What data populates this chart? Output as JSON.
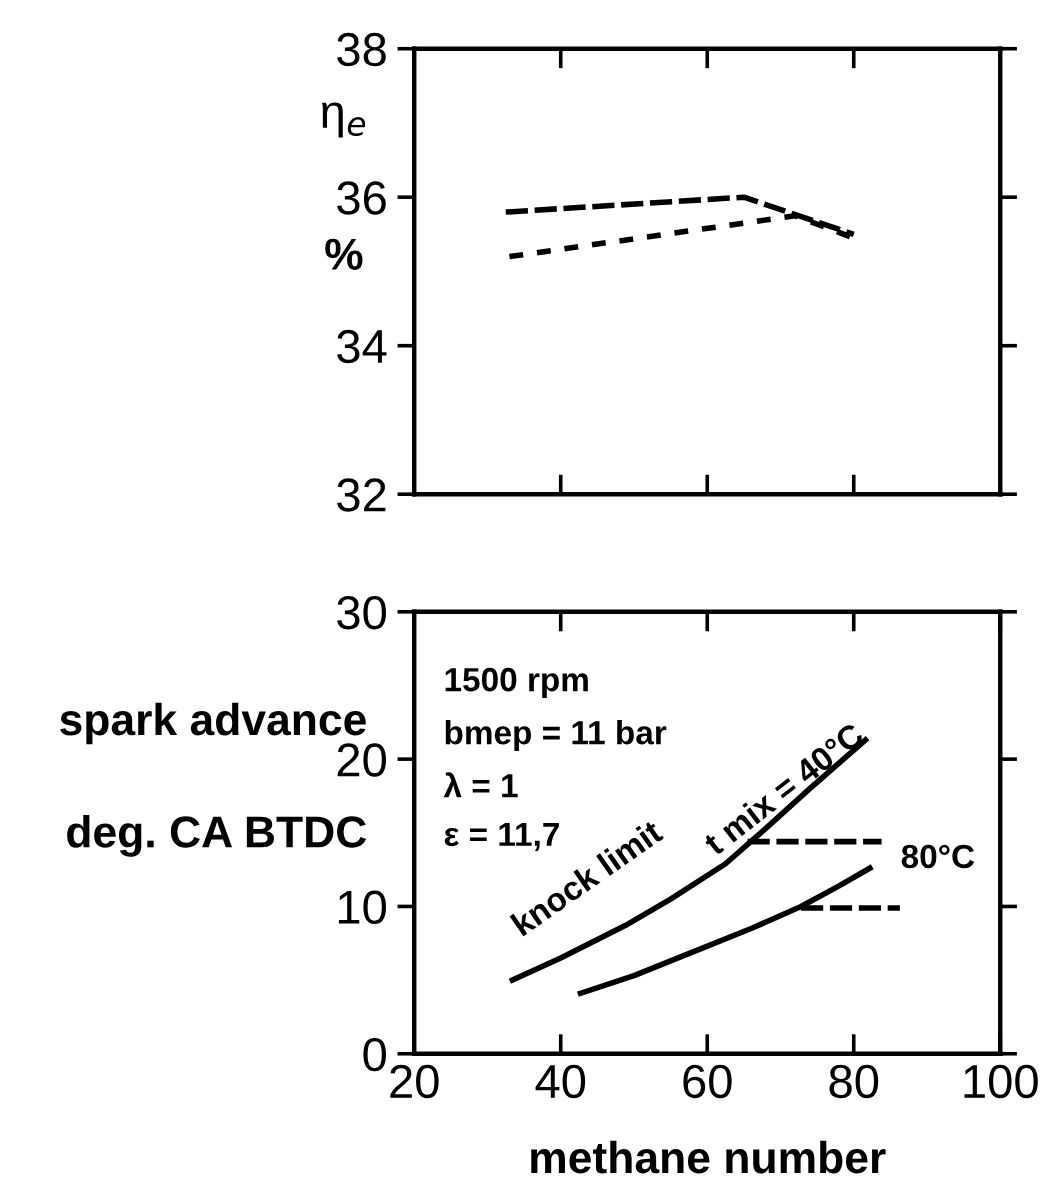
{
  "chart_data": [
    {
      "type": "line",
      "ylabel": "η$_{e}$",
      "annotations": [
        "%"
      ],
      "xlim": [
        20,
        100
      ],
      "xticks": [
        {
          "value": 40,
          "label": null
        },
        {
          "value": 60,
          "label": null
        },
        {
          "value": 80,
          "label": null
        }
      ],
      "ylim": [
        32,
        38
      ],
      "yticks": [
        32,
        34,
        36,
        38
      ],
      "tick_labels": "y",
      "grid": false,
      "series": [
        {
          "color": "#000000",
          "line_style": "dashed",
          "x": [
            32.5,
            65,
            80
          ],
          "values": [
            35.8,
            36.0,
            35.5
          ]
        },
        {
          "color": "#000000",
          "line_style": "dotted",
          "x": [
            33,
            72,
            80
          ],
          "values": [
            35.2,
            35.75,
            35.45
          ]
        }
      ]
    },
    {
      "type": "line",
      "xlabel": "methane number",
      "ylabel": "spark advance\ndeg. CA BTDC",
      "annotations": [
        "1500 rpm",
        "bmep = 11 bar",
        "λ = 1",
        "ε = 11,7",
        "knock limit",
        {
          "text": "t mix = 40°C",
          "x": 72,
          "y": 17
        },
        "80°C"
      ],
      "xlim": [
        20,
        100
      ],
      "xticks": [
        20,
        40,
        60,
        80,
        100
      ],
      "ylim": [
        0,
        30
      ],
      "yticks": [
        0,
        10,
        20,
        30
      ],
      "grid": false,
      "series": [
        {
          "color": "#000000",
          "line_style": "solid",
          "x": [
            33.4,
            40,
            48.8,
            55,
            62.5,
            68,
            74,
            81.6
          ],
          "values": [
            5.0,
            6.5,
            8.7,
            10.5,
            12.9,
            15.3,
            18.0,
            21.3
          ]
        },
        {
          "color": "#000000",
          "line_style": "solid",
          "x": [
            42.7,
            50,
            59,
            66,
            72.8,
            78,
            82.2
          ],
          "values": [
            4.1,
            5.3,
            7.1,
            8.5,
            10.0,
            11.4,
            12.6
          ]
        },
        {
          "color": "#000000",
          "line_style": "dashed",
          "x": [
            65.5,
            83.8
          ],
          "values": [
            14.4,
            14.4
          ]
        },
        {
          "color": "#000000",
          "line_style": "dashed",
          "x": [
            72.8,
            86.3
          ],
          "values": [
            9.9,
            9.9
          ]
        }
      ]
    }
  ]
}
